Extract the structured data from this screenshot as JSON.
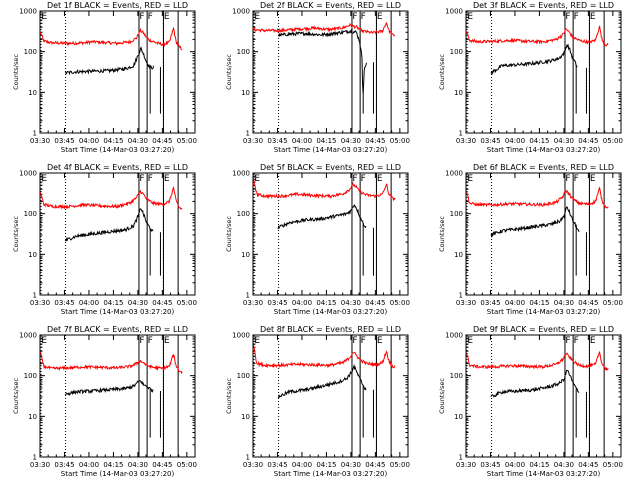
{
  "figure": {
    "panels": [
      {
        "title": "Det 1f BLACK = Events, RED = LLD"
      },
      {
        "title": "Det 2f BLACK = Events, RED = LLD"
      },
      {
        "title": "Det 3f BLACK = Events, RED = LLD"
      },
      {
        "title": "Det 4f BLACK = Events, RED = LLD"
      },
      {
        "title": "Det 5f BLACK = Events, RED = LLD"
      },
      {
        "title": "Det 6f BLACK = Events, RED = LLD"
      },
      {
        "title": "Det 7f BLACK = Events, RED = LLD"
      },
      {
        "title": "Det 8f BLACK = Events, RED = LLD"
      },
      {
        "title": "Det 9f BLACK = Events, RED = LLD"
      }
    ]
  },
  "chart_data": {
    "type": "line",
    "layout": "3x3 grid of detector light curves",
    "xlabel": "Start Time (14-Mar-03 03:27:20)",
    "ylabel": "Counts/sec",
    "x_ticks": [
      "03:30",
      "03:45",
      "04:00",
      "04:15",
      "04:30",
      "04:45",
      "05:00"
    ],
    "x_tick_minutes": [
      2.67,
      17.67,
      32.67,
      47.67,
      62.67,
      77.67,
      92.67
    ],
    "xlim_minutes": [
      2.67,
      97.67
    ],
    "y_scale": "log",
    "ylim": [
      1,
      1000
    ],
    "y_ticks": [
      "1",
      "10",
      "100",
      "1000"
    ],
    "y_tick_values": [
      1,
      10,
      100,
      1000
    ],
    "colors": {
      "events": "#000000",
      "lld": "#ff0000",
      "markers": "#000000"
    },
    "series_names": [
      "Events",
      "LLD"
    ],
    "markers": {
      "dotted_lines_minutes": [
        3.33,
        18.33,
        78.33
      ],
      "solid_lines_minutes": [
        63.33,
        68.33,
        78.33,
        87.33
      ],
      "labels": [
        {
          "text": "E",
          "minute": 3.5
        },
        {
          "text": "F",
          "minute": 63.6
        },
        {
          "text": "F",
          "minute": 68.6
        },
        {
          "text": "E",
          "minute": 78.6
        }
      ]
    },
    "panels": [
      {
        "detector": "1f",
        "events": [
          [
            18,
            30
          ],
          [
            25,
            32
          ],
          [
            35,
            33
          ],
          [
            45,
            34
          ],
          [
            55,
            38
          ],
          [
            60,
            45
          ],
          [
            63,
            85
          ],
          [
            64.5,
            120
          ],
          [
            66,
            90
          ],
          [
            68,
            55
          ],
          [
            69.5,
            45
          ],
          [
            71,
            40
          ],
          [
            72.5,
            42
          ]
        ],
        "lld": [
          [
            3,
            300
          ],
          [
            5,
            180
          ],
          [
            10,
            165
          ],
          [
            20,
            160
          ],
          [
            30,
            165
          ],
          [
            35,
            175
          ],
          [
            40,
            170
          ],
          [
            50,
            160
          ],
          [
            58,
            175
          ],
          [
            62,
            220
          ],
          [
            64,
            330
          ],
          [
            66,
            290
          ],
          [
            68,
            220
          ],
          [
            70,
            190
          ],
          [
            74,
            165
          ],
          [
            78,
            150
          ],
          [
            82,
            170
          ],
          [
            84.5,
            380
          ],
          [
            86,
            180
          ],
          [
            88,
            130
          ],
          [
            90,
            115
          ]
        ]
      },
      {
        "detector": "2f",
        "events": [
          [
            18,
            250
          ],
          [
            25,
            270
          ],
          [
            35,
            280
          ],
          [
            45,
            260
          ],
          [
            55,
            290
          ],
          [
            62,
            320
          ],
          [
            66,
            300
          ],
          [
            68,
            180
          ],
          [
            69.5,
            70
          ],
          [
            70,
            8
          ],
          [
            71,
            40
          ],
          [
            72.5,
            55
          ]
        ],
        "lld": [
          [
            3,
            350
          ],
          [
            10,
            330
          ],
          [
            20,
            330
          ],
          [
            30,
            360
          ],
          [
            40,
            380
          ],
          [
            50,
            350
          ],
          [
            58,
            390
          ],
          [
            62,
            450
          ],
          [
            66,
            400
          ],
          [
            70,
            320
          ],
          [
            76,
            290
          ],
          [
            82,
            320
          ],
          [
            84.5,
            520
          ],
          [
            86,
            330
          ],
          [
            88,
            260
          ],
          [
            90,
            250
          ]
        ]
      },
      {
        "detector": "3f",
        "events": [
          [
            18,
            30
          ],
          [
            25,
            45
          ],
          [
            35,
            48
          ],
          [
            45,
            52
          ],
          [
            55,
            60
          ],
          [
            60,
            70
          ],
          [
            63,
            95
          ],
          [
            64.5,
            150
          ],
          [
            66,
            120
          ],
          [
            68,
            70
          ],
          [
            69.5,
            55
          ],
          [
            71,
            40
          ]
        ],
        "lld": [
          [
            3,
            300
          ],
          [
            5,
            190
          ],
          [
            10,
            175
          ],
          [
            20,
            180
          ],
          [
            30,
            190
          ],
          [
            40,
            180
          ],
          [
            50,
            175
          ],
          [
            58,
            200
          ],
          [
            62,
            260
          ],
          [
            64,
            360
          ],
          [
            66,
            300
          ],
          [
            68,
            230
          ],
          [
            72,
            190
          ],
          [
            78,
            170
          ],
          [
            82,
            190
          ],
          [
            84.5,
            420
          ],
          [
            86,
            200
          ],
          [
            88,
            150
          ],
          [
            90,
            145
          ]
        ]
      },
      {
        "detector": "4f",
        "events": [
          [
            18,
            22
          ],
          [
            25,
            28
          ],
          [
            35,
            32
          ],
          [
            45,
            36
          ],
          [
            55,
            40
          ],
          [
            60,
            50
          ],
          [
            63,
            90
          ],
          [
            64.5,
            140
          ],
          [
            66,
            100
          ],
          [
            68,
            60
          ],
          [
            70,
            45
          ],
          [
            72,
            35
          ]
        ],
        "lld": [
          [
            3,
            320
          ],
          [
            5,
            170
          ],
          [
            10,
            150
          ],
          [
            20,
            150
          ],
          [
            30,
            165
          ],
          [
            40,
            155
          ],
          [
            50,
            150
          ],
          [
            58,
            185
          ],
          [
            62,
            250
          ],
          [
            64,
            360
          ],
          [
            66,
            300
          ],
          [
            68,
            230
          ],
          [
            72,
            180
          ],
          [
            78,
            170
          ],
          [
            82,
            200
          ],
          [
            84.5,
            440
          ],
          [
            86,
            210
          ],
          [
            88,
            140
          ],
          [
            90,
            130
          ]
        ]
      },
      {
        "detector": "5f",
        "events": [
          [
            18,
            45
          ],
          [
            25,
            60
          ],
          [
            35,
            70
          ],
          [
            45,
            75
          ],
          [
            55,
            90
          ],
          [
            60,
            100
          ],
          [
            63,
            120
          ],
          [
            64.5,
            170
          ],
          [
            66,
            140
          ],
          [
            68,
            90
          ],
          [
            70,
            60
          ],
          [
            72,
            45
          ]
        ],
        "lld": [
          [
            3,
            700
          ],
          [
            5,
            300
          ],
          [
            10,
            270
          ],
          [
            20,
            270
          ],
          [
            30,
            300
          ],
          [
            40,
            280
          ],
          [
            50,
            270
          ],
          [
            58,
            310
          ],
          [
            62,
            400
          ],
          [
            64,
            520
          ],
          [
            66,
            450
          ],
          [
            68,
            350
          ],
          [
            72,
            290
          ],
          [
            78,
            270
          ],
          [
            82,
            300
          ],
          [
            84.5,
            520
          ],
          [
            86,
            300
          ],
          [
            88,
            240
          ],
          [
            90,
            230
          ]
        ]
      },
      {
        "detector": "6f",
        "events": [
          [
            18,
            30
          ],
          [
            25,
            38
          ],
          [
            35,
            42
          ],
          [
            45,
            48
          ],
          [
            55,
            55
          ],
          [
            60,
            65
          ],
          [
            63,
            90
          ],
          [
            64.5,
            150
          ],
          [
            66,
            110
          ],
          [
            68,
            70
          ],
          [
            70,
            50
          ],
          [
            72,
            35
          ]
        ],
        "lld": [
          [
            3,
            350
          ],
          [
            5,
            180
          ],
          [
            10,
            165
          ],
          [
            20,
            165
          ],
          [
            30,
            175
          ],
          [
            40,
            170
          ],
          [
            50,
            165
          ],
          [
            58,
            190
          ],
          [
            62,
            260
          ],
          [
            64,
            370
          ],
          [
            66,
            300
          ],
          [
            68,
            230
          ],
          [
            72,
            180
          ],
          [
            78,
            170
          ],
          [
            82,
            200
          ],
          [
            84.5,
            420
          ],
          [
            86,
            210
          ],
          [
            88,
            150
          ],
          [
            90,
            145
          ]
        ]
      },
      {
        "detector": "7f",
        "events": [
          [
            18,
            35
          ],
          [
            25,
            40
          ],
          [
            35,
            42
          ],
          [
            45,
            45
          ],
          [
            55,
            48
          ],
          [
            60,
            55
          ],
          [
            63,
            70
          ],
          [
            64.5,
            75
          ],
          [
            66,
            60
          ],
          [
            68,
            55
          ],
          [
            70,
            48
          ],
          [
            72,
            42
          ]
        ],
        "lld": [
          [
            3,
            350
          ],
          [
            5,
            170
          ],
          [
            10,
            150
          ],
          [
            20,
            155
          ],
          [
            30,
            165
          ],
          [
            40,
            160
          ],
          [
            50,
            155
          ],
          [
            58,
            170
          ],
          [
            62,
            200
          ],
          [
            64,
            230
          ],
          [
            66,
            210
          ],
          [
            68,
            180
          ],
          [
            72,
            160
          ],
          [
            78,
            150
          ],
          [
            82,
            170
          ],
          [
            84.5,
            340
          ],
          [
            86,
            180
          ],
          [
            88,
            130
          ],
          [
            90,
            120
          ]
        ]
      },
      {
        "detector": "8f",
        "events": [
          [
            18,
            30
          ],
          [
            25,
            40
          ],
          [
            35,
            45
          ],
          [
            45,
            55
          ],
          [
            55,
            70
          ],
          [
            60,
            85
          ],
          [
            63,
            120
          ],
          [
            64.5,
            170
          ],
          [
            66,
            130
          ],
          [
            68,
            85
          ],
          [
            70,
            60
          ],
          [
            72,
            45
          ]
        ],
        "lld": [
          [
            3,
            600
          ],
          [
            5,
            200
          ],
          [
            10,
            180
          ],
          [
            20,
            180
          ],
          [
            30,
            190
          ],
          [
            40,
            185
          ],
          [
            50,
            180
          ],
          [
            58,
            210
          ],
          [
            62,
            280
          ],
          [
            64,
            380
          ],
          [
            66,
            320
          ],
          [
            68,
            250
          ],
          [
            72,
            200
          ],
          [
            78,
            185
          ],
          [
            82,
            210
          ],
          [
            84.5,
            400
          ],
          [
            86,
            230
          ],
          [
            88,
            170
          ],
          [
            90,
            160
          ]
        ]
      },
      {
        "detector": "9f",
        "events": [
          [
            18,
            30
          ],
          [
            25,
            40
          ],
          [
            35,
            42
          ],
          [
            45,
            45
          ],
          [
            55,
            55
          ],
          [
            60,
            65
          ],
          [
            63,
            85
          ],
          [
            64.5,
            140
          ],
          [
            66,
            110
          ],
          [
            68,
            70
          ],
          [
            70,
            50
          ],
          [
            72,
            40
          ]
        ],
        "lld": [
          [
            3,
            350
          ],
          [
            5,
            180
          ],
          [
            10,
            165
          ],
          [
            20,
            165
          ],
          [
            30,
            175
          ],
          [
            40,
            170
          ],
          [
            50,
            165
          ],
          [
            58,
            190
          ],
          [
            62,
            250
          ],
          [
            64,
            350
          ],
          [
            66,
            290
          ],
          [
            68,
            230
          ],
          [
            72,
            180
          ],
          [
            78,
            170
          ],
          [
            82,
            190
          ],
          [
            84.5,
            380
          ],
          [
            86,
            200
          ],
          [
            88,
            150
          ],
          [
            90,
            145
          ]
        ]
      }
    ]
  }
}
